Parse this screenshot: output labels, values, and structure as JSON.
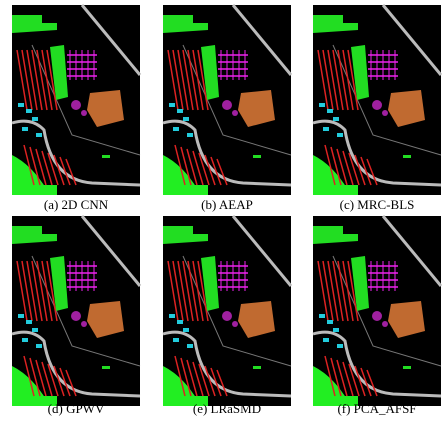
{
  "panels": [
    {
      "caption": "(a) 2D CNN"
    },
    {
      "caption": "(b) AEAP"
    },
    {
      "caption": "(c) MRC-BLS"
    },
    {
      "caption": "(d) GPWV"
    },
    {
      "caption": "(e) LRaSMD"
    },
    {
      "caption": "(f) PCA_AFSF"
    }
  ]
}
